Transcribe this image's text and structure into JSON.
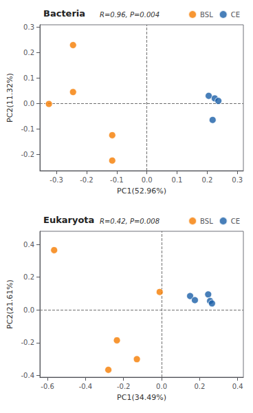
{
  "chart_data": [
    {
      "type": "scatter",
      "title": "Bacteria",
      "annotation": "R=0.96, P=0.004",
      "xlabel": "PC1(52.96%)",
      "ylabel": "PC2(11.32%)",
      "xlim": [
        -0.355,
        0.32
      ],
      "ylim": [
        -0.265,
        0.31
      ],
      "xticks": [
        -0.3,
        -0.2,
        -0.1,
        {
          "value": 0.0,
          "label": "0.0"
        },
        0.1,
        0.2,
        0.3
      ],
      "yticks": [
        -0.2,
        -0.1,
        {
          "value": 0.0,
          "label": "0.0"
        },
        0.1,
        0.2,
        0.3
      ],
      "legend": "upper right",
      "series": [
        {
          "name": "BSL",
          "color": "#f57c00",
          "x": [
            -0.325,
            -0.245,
            -0.245,
            -0.115,
            -0.115
          ],
          "values": [
            -0.002,
            0.23,
            0.045,
            -0.125,
            -0.225
          ]
        },
        {
          "name": "CE",
          "color": "#1a5fa8",
          "x": [
            0.205,
            0.225,
            0.237,
            0.218
          ],
          "values": [
            0.03,
            0.02,
            0.01,
            -0.065
          ]
        }
      ]
    },
    {
      "type": "scatter",
      "title": "Eukaryota",
      "annotation": "R=0.42, P=0.008",
      "xlabel": "PC1(34.49%)",
      "ylabel": "PC2(21.61%)",
      "xlim": [
        -0.64,
        0.43
      ],
      "ylim": [
        -0.41,
        0.48
      ],
      "xticks": [
        -0.6,
        -0.4,
        -0.2,
        {
          "value": 0.0,
          "label": "0.0"
        },
        0.2,
        0.4
      ],
      "yticks": [
        -0.4,
        -0.2,
        {
          "value": 0.0,
          "label": "0.0"
        },
        0.2,
        0.4
      ],
      "legend": "upper right",
      "series": [
        {
          "name": "BSL",
          "color": "#f57c00",
          "x": [
            -0.565,
            -0.01,
            -0.235,
            -0.13,
            -0.28
          ],
          "values": [
            0.365,
            0.11,
            -0.185,
            -0.3,
            -0.365
          ]
        },
        {
          "name": "CE",
          "color": "#1a5fa8",
          "x": [
            0.15,
            0.175,
            0.245,
            0.255,
            0.265
          ],
          "values": [
            0.085,
            0.06,
            0.095,
            0.055,
            0.04
          ]
        }
      ]
    }
  ]
}
